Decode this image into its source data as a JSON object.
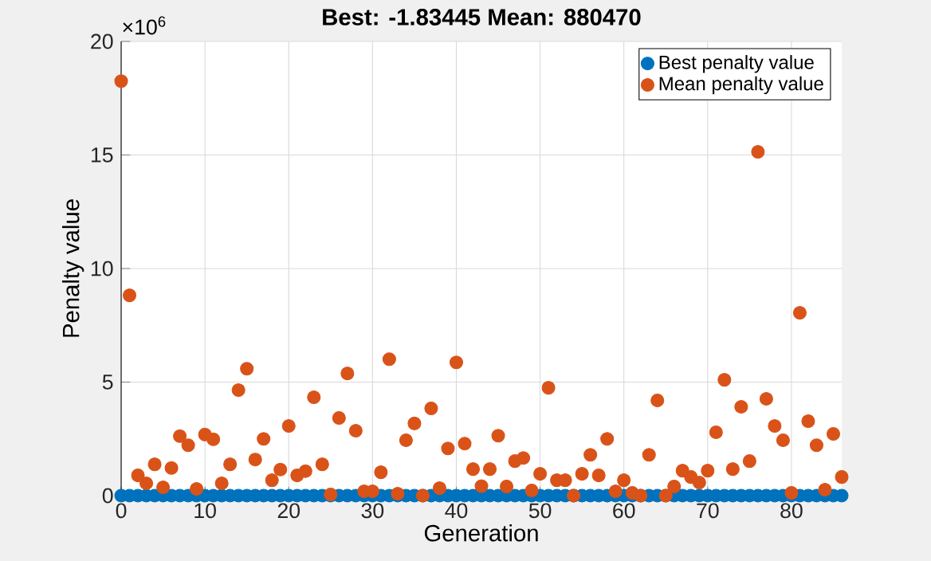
{
  "chart_data": {
    "type": "scatter",
    "title": "Best: -1.83445 Mean: 880470",
    "xlabel": "Generation",
    "ylabel": "Penalty value",
    "annotations": [
      "×10$^{6}$"
    ],
    "x": [
      0,
      1,
      2,
      3,
      4,
      5,
      6,
      7,
      8,
      9,
      10,
      11,
      12,
      13,
      14,
      15,
      16,
      17,
      18,
      19,
      20,
      21,
      22,
      23,
      24,
      25,
      26,
      27,
      28,
      29,
      30,
      31,
      32,
      33,
      34,
      35,
      36,
      37,
      38,
      39,
      40,
      41,
      42,
      43,
      44,
      45,
      46,
      47,
      48,
      49,
      50,
      51,
      52,
      53,
      54,
      55,
      56,
      57,
      58,
      59,
      60,
      61,
      62,
      63,
      64,
      65,
      66,
      67,
      68,
      69,
      70,
      71,
      72,
      73,
      74,
      75,
      76,
      77,
      78,
      79,
      80,
      81,
      82,
      83,
      84,
      85,
      86
    ],
    "series": [
      {
        "name": "Best penalty value",
        "color": "#0072bd",
        "values": [
          0,
          0,
          0,
          0,
          0,
          0,
          0,
          0,
          0,
          0,
          0,
          0,
          0,
          0,
          0,
          0,
          0,
          0,
          0,
          0,
          0,
          0,
          0,
          0,
          0,
          0,
          0,
          0,
          0,
          0,
          0,
          0,
          0,
          0,
          0,
          0,
          0,
          0,
          0,
          0,
          0,
          0,
          0,
          0,
          0,
          0,
          0,
          0,
          0,
          0,
          0,
          0,
          0,
          0,
          0,
          0,
          0,
          0,
          0,
          0,
          0,
          0,
          0,
          0,
          0,
          0,
          0,
          0,
          0,
          0,
          0,
          0,
          0,
          0,
          0,
          0,
          0,
          0,
          0,
          0,
          0,
          0,
          0,
          0,
          0,
          0,
          0
        ]
      },
      {
        "name": "Mean penalty value",
        "color": "#d95319",
        "values": [
          18.25,
          8.82,
          0.89,
          0.54,
          1.38,
          0.37,
          1.22,
          2.62,
          2.22,
          0.3,
          2.69,
          2.48,
          0.54,
          1.38,
          4.65,
          5.59,
          1.59,
          2.5,
          0.68,
          1.15,
          3.07,
          0.89,
          1.08,
          4.33,
          1.38,
          0.05,
          3.42,
          5.38,
          2.86,
          0.19,
          0.19,
          1.03,
          6.01,
          0.09,
          2.44,
          3.18,
          0,
          3.84,
          0.33,
          2.08,
          5.87,
          2.29,
          1.17,
          0.42,
          1.17,
          2.64,
          0.4,
          1.52,
          1.66,
          0.23,
          0.96,
          4.75,
          0.68,
          0.68,
          0,
          0.96,
          1.8,
          0.89,
          2.5,
          0.19,
          0.68,
          0.12,
          0,
          1.8,
          4.19,
          0,
          0.4,
          1.1,
          0.82,
          0.58,
          1.1,
          2.79,
          5.1,
          1.17,
          3.91,
          1.52,
          15.14,
          4.26,
          3.07,
          2.44,
          0.12,
          8.05,
          3.28,
          2.22,
          0.26,
          2.72,
          0.82
        ]
      }
    ],
    "xlim": [
      0,
      86
    ],
    "ylim": [
      0,
      20
    ],
    "xticks": [
      0,
      10,
      20,
      30,
      40,
      50,
      60,
      70,
      80
    ],
    "yticks": [
      0,
      5,
      10,
      15,
      20
    ],
    "grid": true,
    "legend": "top right",
    "marker": "circle"
  }
}
